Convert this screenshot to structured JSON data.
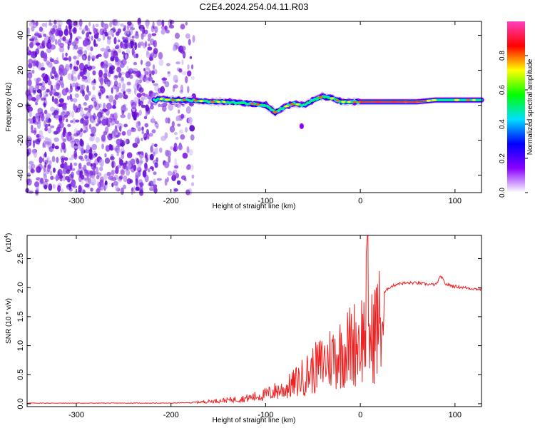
{
  "title": "C2E4.2024.254.04.11.R03",
  "chart_data": [
    {
      "type": "heatmap",
      "xlabel": "Height of straight line (km)",
      "ylabel": "Frequency (Hz)",
      "xlim": [
        -352,
        128
      ],
      "ylim": [
        -50,
        48
      ],
      "x_ticks": [
        "-300",
        "-200",
        "-100",
        "0",
        "100"
      ],
      "y_ticks": [
        "-40",
        "-20",
        "0",
        "20",
        "40"
      ],
      "colorbar": {
        "label": "Normalized spectral amplitude",
        "range": [
          0,
          1
        ],
        "ticks": [
          "0.0",
          "0.2",
          "0.4",
          "0.6",
          "0.8"
        ],
        "colors": [
          "#ffffff",
          "#8800ff",
          "#0000ff",
          "#00e0ff",
          "#00ff00",
          "#ffff00",
          "#ff0000",
          "#ff40c0"
        ]
      },
      "ridge": {
        "x": [
          -215,
          -200,
          -180,
          -160,
          -140,
          -120,
          -100,
          -90,
          -80,
          -70,
          -60,
          -50,
          -40,
          -30,
          -20,
          -10,
          0,
          20,
          40,
          60,
          80,
          100,
          128
        ],
        "y": [
          4,
          3,
          3,
          2,
          2,
          1,
          0,
          -4,
          -1,
          1,
          0,
          3,
          5,
          4,
          2,
          2,
          2,
          2,
          2,
          2,
          3,
          3,
          3
        ]
      }
    },
    {
      "type": "line",
      "xlabel": "Height of straight line (km)",
      "ylabel": "SNR (10 * v/v)",
      "y_multiplier": "(x10",
      "y_multiplier_exp": "4",
      "multiplier_close": ")",
      "xlim": [
        -352,
        128
      ],
      "ylim": [
        -0.05,
        2.9
      ],
      "x_ticks": [
        "-300",
        "-200",
        "-100",
        "0",
        "100"
      ],
      "y_ticks": [
        "0.0",
        "0.5",
        "1.0",
        "1.5",
        "2.0",
        "2.5"
      ],
      "color": "#ff0000",
      "series": [
        {
          "x": [
            -352,
            -300,
            -250,
            -200,
            -180,
            -160,
            -140,
            -120,
            -100,
            -90,
            -80,
            -70,
            -60,
            -50,
            -40,
            -30,
            -20,
            -10,
            0,
            5,
            8,
            10,
            15,
            20,
            30,
            40,
            50,
            60,
            70,
            80,
            85,
            90,
            100,
            110,
            120,
            128
          ],
          "y": [
            0.01,
            0.01,
            0.01,
            0.01,
            0.02,
            0.05,
            0.08,
            0.12,
            0.2,
            0.28,
            0.32,
            0.45,
            0.6,
            0.75,
            0.9,
            1.05,
            1.15,
            1.3,
            1.45,
            1.55,
            2.88,
            1.3,
            1.65,
            1.8,
            2.0,
            2.07,
            2.08,
            2.08,
            2.06,
            2.05,
            2.2,
            2.06,
            2.02,
            2.0,
            1.98,
            1.97
          ]
        }
      ]
    }
  ]
}
